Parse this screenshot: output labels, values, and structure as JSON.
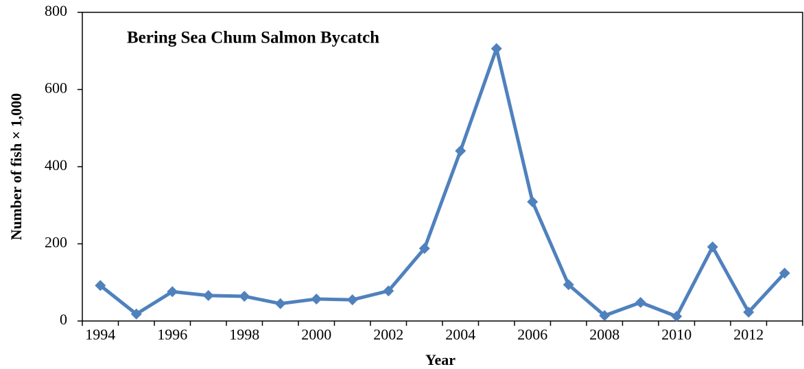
{
  "chart_data": {
    "type": "line",
    "title": "Bering Sea Chum Salmon Bycatch",
    "x_label": "Year",
    "y_label": "Number of fish × 1,000",
    "categories": [
      "1994",
      null,
      "1996",
      null,
      "1998",
      null,
      "2000",
      null,
      "2002",
      null,
      "2004",
      null,
      "2006",
      null,
      "2008",
      null,
      "2010",
      null,
      "2012",
      null
    ],
    "series": [
      {
        "name": "Chum salmon bycatch",
        "color": "#4f81bd",
        "values": [
          92,
          18,
          76,
          66,
          64,
          45,
          57,
          55,
          78,
          188,
          441,
          706,
          309,
          94,
          14,
          48,
          12,
          192,
          23,
          124
        ]
      }
    ],
    "ylim": [
      0,
      800
    ],
    "yticks": [
      0,
      200,
      400,
      600,
      800
    ],
    "grid": false
  }
}
